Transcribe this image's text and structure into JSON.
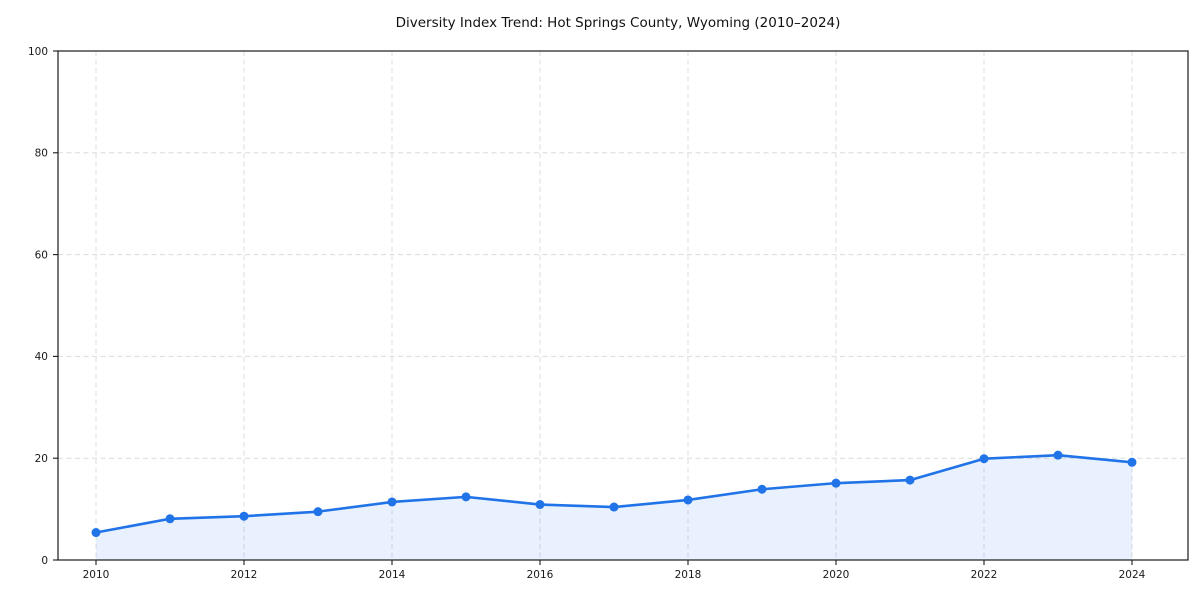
{
  "chart_data": {
    "type": "line",
    "title": "Diversity Index Trend: Hot Springs County, Wyoming (2010–2024)",
    "x": [
      2010,
      2011,
      2012,
      2013,
      2014,
      2015,
      2016,
      2017,
      2018,
      2019,
      2020,
      2021,
      2022,
      2023,
      2024
    ],
    "series": [
      {
        "name": "Diversity Index",
        "values": [
          5.4,
          8.1,
          8.6,
          9.5,
          11.4,
          12.4,
          10.9,
          10.4,
          11.8,
          13.9,
          15.1,
          15.7,
          19.9,
          20.6,
          19.2
        ]
      }
    ],
    "xlabel": "",
    "ylabel": "",
    "ylim": [
      0,
      100
    ],
    "xticks": [
      2010,
      2012,
      2014,
      2016,
      2018,
      2020,
      2022,
      2024
    ],
    "yticks": [
      0,
      20,
      40,
      60,
      80,
      100
    ],
    "grid": true,
    "grid_style": "dashed",
    "legend": "none",
    "area_fill": true,
    "marker": "circle",
    "colors": {
      "line": "#2173e8",
      "marker": "#2173e8",
      "area_fill": "#2173e8",
      "grid": "#dcdcdc",
      "axis": "#1a1a1a",
      "text": "#111111",
      "background": "#ffffff"
    }
  }
}
